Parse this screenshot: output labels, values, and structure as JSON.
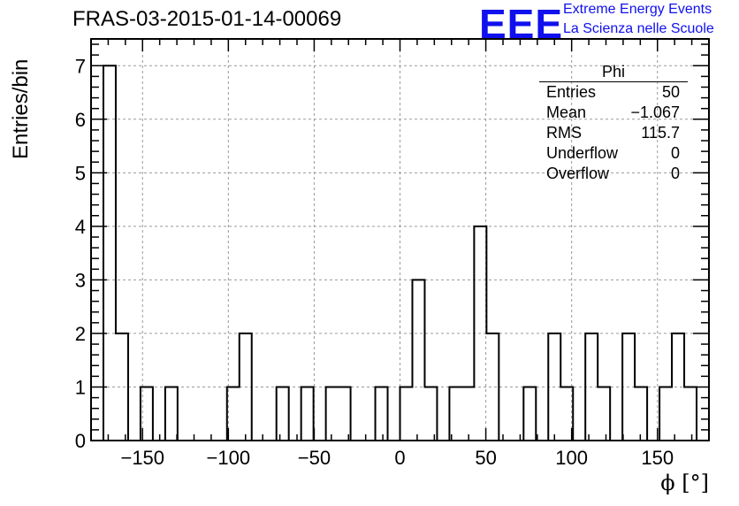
{
  "header": {
    "title": "FRAS-03-2015-01-14-00069",
    "logo_mark": "EEE",
    "logo_line1": "Extreme Energy Events",
    "logo_line2": "La Scienza nelle Scuole",
    "logo_color": "#1010ee"
  },
  "stats_box": {
    "title": "Phi",
    "rows": [
      {
        "label": "Entries",
        "value": "50"
      },
      {
        "label": "Mean",
        "value": "−1.067"
      },
      {
        "label": "RMS",
        "value": "115.7"
      },
      {
        "label": "Underflow",
        "value": "0"
      },
      {
        "label": "Overflow",
        "value": "0"
      }
    ]
  },
  "chart_data": {
    "type": "bar",
    "histogram": true,
    "title": "FRAS-03-2015-01-14-00069",
    "xlabel": "ϕ [°]",
    "ylabel": "Entries/bin",
    "xlim": [
      -180,
      180
    ],
    "ylim": [
      0,
      7.5
    ],
    "grid": true,
    "bin_width": 7.2,
    "bin_edges_start": -172.8,
    "values": [
      7,
      2,
      0,
      1,
      0,
      1,
      0,
      0,
      0,
      0,
      1,
      2,
      0,
      0,
      1,
      0,
      1,
      0,
      1,
      1,
      0,
      0,
      1,
      0,
      1,
      3,
      1,
      0,
      1,
      1,
      4,
      2,
      0,
      0,
      1,
      0,
      2,
      1,
      0,
      2,
      1,
      0,
      2,
      1,
      0,
      1,
      2,
      1
    ],
    "x_ticks": [
      -150,
      -100,
      -50,
      0,
      50,
      100,
      150
    ],
    "x_tick_labels": [
      "−150",
      "−100",
      "−50",
      "0",
      "50",
      "100",
      "150"
    ],
    "y_ticks": [
      0,
      1,
      2,
      3,
      4,
      5,
      6,
      7
    ],
    "y_tick_labels": [
      "0",
      "1",
      "2",
      "3",
      "4",
      "5",
      "6",
      "7"
    ]
  }
}
